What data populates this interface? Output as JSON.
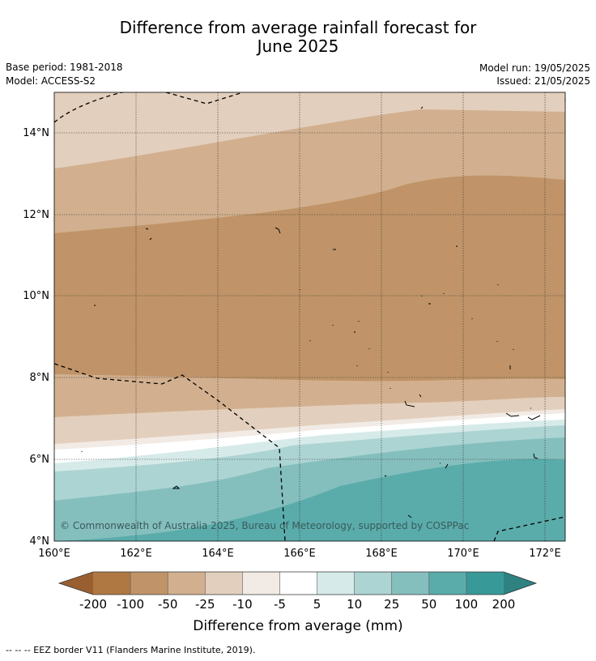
{
  "title": {
    "line1": "Difference from average rainfall forecast for",
    "line2": "June 2025"
  },
  "meta": {
    "base_period": "Base period: 1981-2018",
    "model": "Model: ACCESS-S2",
    "model_run": "Model run: 19/05/2025",
    "issued": "Issued: 21/05/2025"
  },
  "map": {
    "lat_labels": [
      "14°N",
      "12°N",
      "10°N",
      "8°N",
      "6°N",
      "4°N"
    ],
    "lon_labels": [
      "160°E",
      "162°E",
      "164°E",
      "166°E",
      "168°E",
      "170°E",
      "172°E"
    ],
    "copyright": "© Commonwealth of Australia 2025, Bureau of Meteorology, supported by COSPPac"
  },
  "colorbar": {
    "labels": [
      "-200",
      "-100",
      "-50",
      "-25",
      "-10",
      "-5",
      "5",
      "10",
      "25",
      "50",
      "100",
      "200"
    ],
    "colors": [
      "#9a5f30",
      "#af7842",
      "#c09468",
      "#d2b08f",
      "#e3cfbd",
      "#f2ebe5",
      "#ffffff",
      "#d6ebe9",
      "#acd4d3",
      "#84bfbe",
      "#5aacab",
      "#379a98",
      "#2e8282"
    ],
    "title": "Difference from average (mm)"
  },
  "footnote": "-- -- -- EEZ border V11 (Flanders Marine Institute, 2019)."
}
